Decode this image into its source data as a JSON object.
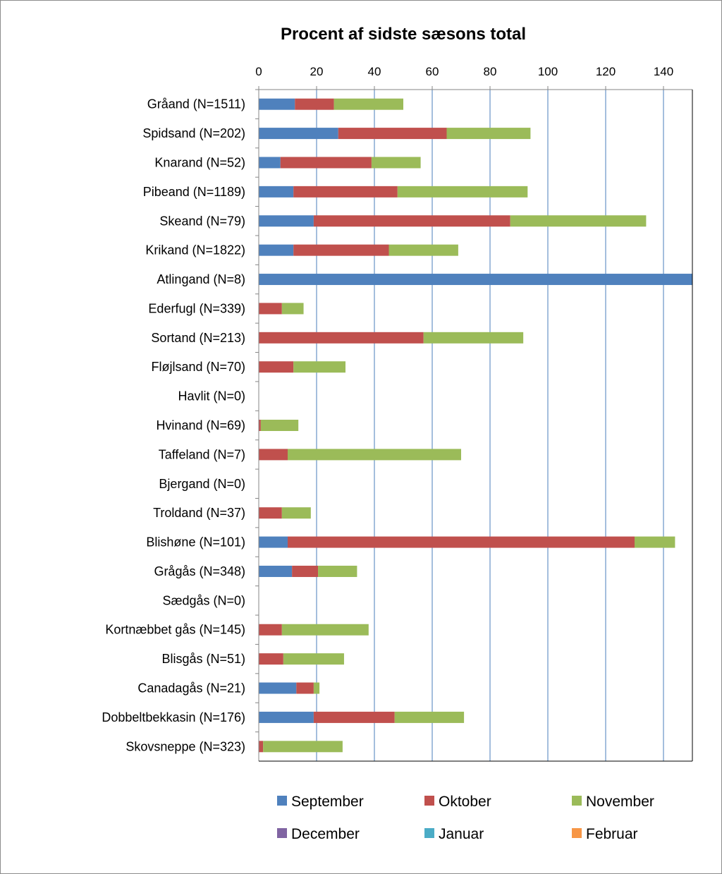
{
  "chart_data": {
    "type": "bar",
    "orientation": "horizontal",
    "stacked": true,
    "title": "Procent af sidste sæsons total",
    "xlabel": "",
    "ylabel": "",
    "xlim": [
      0,
      150
    ],
    "x_ticks": [
      0,
      20,
      40,
      60,
      80,
      100,
      120,
      140
    ],
    "grid": "vertical",
    "x_axis_position": "top",
    "legend_position": "bottom",
    "categories": [
      "Gråand (N=1511)",
      "Spidsand (N=202)",
      "Knarand (N=52)",
      "Pibeand (N=1189)",
      "Skeand (N=79)",
      "Krikand (N=1822)",
      "Atlingand (N=8)",
      "Ederfugl (N=339)",
      "Sortand (N=213)",
      "Fløjlsand (N=70)",
      "Havlit (N=0)",
      "Hvinand (N=69)",
      "Taffeland (N=7)",
      "Bjergand (N=0)",
      "Troldand (N=37)",
      "Blishøne (N=101)",
      "Grågås (N=348)",
      "Sædgås (N=0)",
      "Kortnæbbet gås (N=145)",
      "Blisgås (N=51)",
      "Canadagås (N=21)",
      "Dobbeltbekkasin (N=176)",
      "Skovsneppe (N=323)"
    ],
    "series": [
      {
        "name": "September",
        "color": "#4f81bd",
        "values": [
          12.5,
          27.5,
          7.5,
          12,
          19,
          12,
          150,
          0,
          0,
          0,
          0,
          0,
          0,
          0,
          0,
          10,
          11.5,
          0,
          0,
          0,
          13,
          19,
          0
        ]
      },
      {
        "name": "Oktober",
        "color": "#c0504d",
        "values": [
          13.5,
          37.5,
          31.5,
          36,
          68,
          33,
          0,
          8,
          57,
          12,
          0,
          0.7,
          10,
          0,
          8,
          120,
          9,
          0,
          8,
          8.5,
          6,
          28,
          1.5
        ]
      },
      {
        "name": "November",
        "color": "#9bbb59",
        "values": [
          24,
          29,
          17,
          45,
          47,
          24,
          0,
          7.5,
          34.5,
          18,
          0,
          13,
          60,
          0,
          10,
          14,
          13.5,
          0,
          30,
          21,
          2,
          24,
          27.5
        ]
      },
      {
        "name": "December",
        "color": "#8064a2",
        "values": [
          0,
          0,
          0,
          0,
          0,
          0,
          0,
          0,
          0,
          0,
          0,
          0,
          0,
          0,
          0,
          0,
          0,
          0,
          0,
          0,
          0,
          0,
          0
        ]
      },
      {
        "name": "Januar",
        "color": "#4bacc6",
        "values": [
          0,
          0,
          0,
          0,
          0,
          0,
          0,
          0,
          0,
          0,
          0,
          0,
          0,
          0,
          0,
          0,
          0,
          0,
          0,
          0,
          0,
          0,
          0
        ]
      },
      {
        "name": "Februar",
        "color": "#f79646",
        "values": [
          0,
          0,
          0,
          0,
          0,
          0,
          0,
          0,
          0,
          0,
          0,
          0,
          0,
          0,
          0,
          0,
          0,
          0,
          0,
          0,
          0,
          0,
          0
        ]
      }
    ]
  }
}
